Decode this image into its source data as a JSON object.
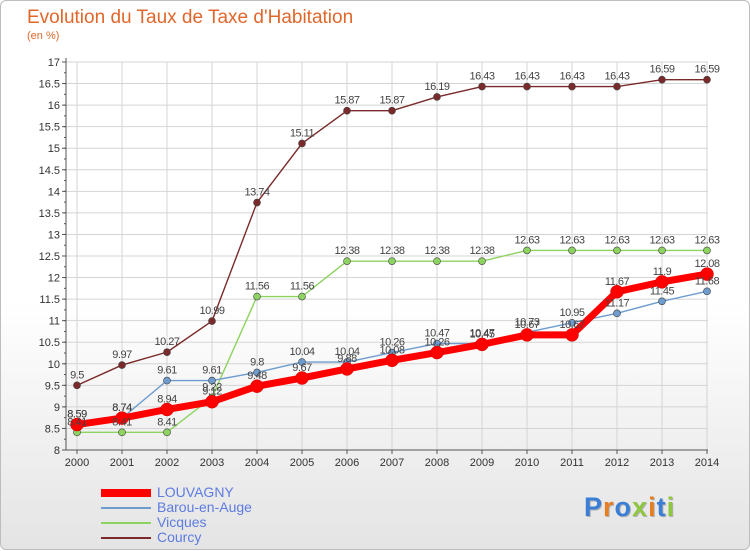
{
  "title": "Evolution du Taux de Taxe d'Habitation",
  "subtitle": "(en %)",
  "logo_text": "Proxiti",
  "logo_colors": [
    "#3a7fd5",
    "#e67e22",
    "#3a7fd5",
    "#8dc63f",
    "#e67e22",
    "#3a7fd5",
    "#8dc63f"
  ],
  "colors": {
    "grid": "#d4d4d4",
    "axis": "#555555",
    "tick_text": "#333333",
    "value_text": "#444444"
  },
  "chart_data": {
    "type": "line",
    "x": [
      "2000",
      "2001",
      "2002",
      "2003",
      "2004",
      "2005",
      "2006",
      "2007",
      "2008",
      "2009",
      "2010",
      "2011",
      "2012",
      "2013",
      "2014"
    ],
    "ylim": [
      8,
      17
    ],
    "yticks": [
      "8",
      "8.5",
      "9",
      "9.5",
      "10",
      "10.5",
      "11",
      "11.5",
      "12",
      "12.5",
      "13",
      "13.5",
      "14",
      "14.5",
      "15",
      "15.5",
      "16",
      "16.5",
      "17"
    ],
    "grid": true,
    "legend_position": "bottom-left",
    "series": [
      {
        "name": "Courcy",
        "color": "#7a2a2a",
        "width": 1.4,
        "values": [
          9.5,
          9.97,
          10.27,
          10.99,
          13.74,
          15.11,
          15.87,
          15.87,
          16.19,
          16.43,
          16.43,
          16.43,
          16.43,
          16.59,
          16.59
        ],
        "labels": [
          "9.5",
          "9.97",
          "10.27",
          "10.99",
          "13.74",
          "15.11",
          "15.87",
          "15.87",
          "16.19",
          "16.43",
          "16.43",
          "16.43",
          "16.43",
          "16.59",
          "16.59"
        ]
      },
      {
        "name": "Vicques",
        "color": "#8dd35f",
        "width": 1.4,
        "values": [
          8.41,
          8.41,
          8.41,
          9.22,
          11.56,
          11.56,
          12.38,
          12.38,
          12.38,
          12.38,
          12.63,
          12.63,
          12.63,
          12.63,
          12.63
        ],
        "labels": [
          "8.41",
          "8.41",
          "8.41",
          "9.22",
          "11.56",
          "11.56",
          "12.38",
          "12.38",
          "12.38",
          "12.38",
          "12.63",
          "12.63",
          "12.63",
          "12.63",
          "12.63"
        ]
      },
      {
        "name": "Barou-en-Auge",
        "color": "#6e9ccf",
        "width": 1.4,
        "values": [
          8.59,
          8.74,
          9.61,
          9.61,
          9.8,
          10.04,
          10.04,
          10.26,
          10.47,
          10.47,
          10.73,
          10.95,
          11.17,
          11.45,
          11.68
        ],
        "labels": [
          "8.59",
          "8.74",
          "9.61",
          "9.61",
          "9.8",
          "10.04",
          "10.04",
          "10.26",
          "10.47",
          "10.47",
          "10.73",
          "10.95",
          "11.17",
          "11.45",
          "11.68"
        ]
      },
      {
        "name": "LOUVAGNY",
        "color": "#ff0000",
        "width": 7,
        "values": [
          8.59,
          8.74,
          8.94,
          9.12,
          9.48,
          9.67,
          9.88,
          10.08,
          10.26,
          10.45,
          10.67,
          10.67,
          11.67,
          11.9,
          12.08
        ],
        "labels": [
          "8.59",
          "8.74",
          "8.94",
          "9.12",
          "9.48",
          "9.67",
          "9.88",
          "10.08",
          "10.26",
          "10.45",
          "10.67",
          "10.67",
          "11.67",
          "11.9",
          "12.08"
        ]
      }
    ]
  },
  "legend": [
    {
      "label": "LOUVAGNY",
      "color": "#ff0000",
      "thickness": 8
    },
    {
      "label": "Barou-en-Auge",
      "color": "#6e9ccf",
      "thickness": 2
    },
    {
      "label": "Vicques",
      "color": "#8dd35f",
      "thickness": 2
    },
    {
      "label": "Courcy",
      "color": "#7a2a2a",
      "thickness": 2
    }
  ]
}
